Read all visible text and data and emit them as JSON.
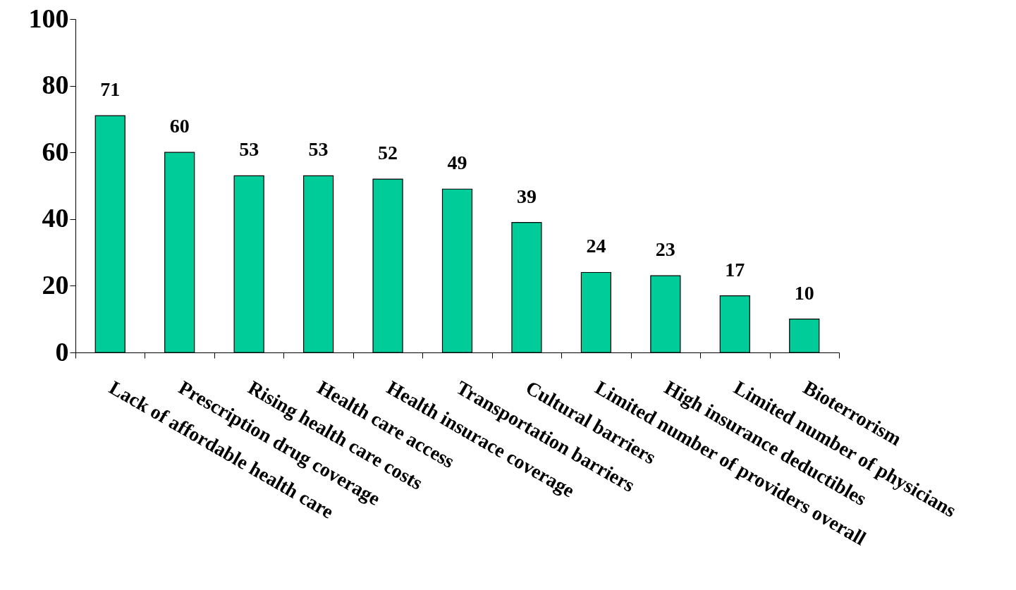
{
  "chart_data": {
    "type": "bar",
    "categories": [
      "Lack of affordable health care",
      "Prescription drug coverage",
      "Rising health care costs",
      "Health care access",
      "Health insurace coverage",
      "Transportation barriers",
      "Cultural barriers",
      "Limited number of providers overall",
      "High insurance deductibles",
      "Limited number of physicians",
      "Bioterrorism"
    ],
    "values": [
      71,
      60,
      53,
      53,
      52,
      49,
      39,
      24,
      23,
      17,
      10
    ],
    "color": "#00cc99",
    "ylim": [
      0,
      100
    ],
    "yticks": [
      0,
      20,
      40,
      60,
      80,
      100
    ],
    "grid": false,
    "data_labels": true
  }
}
